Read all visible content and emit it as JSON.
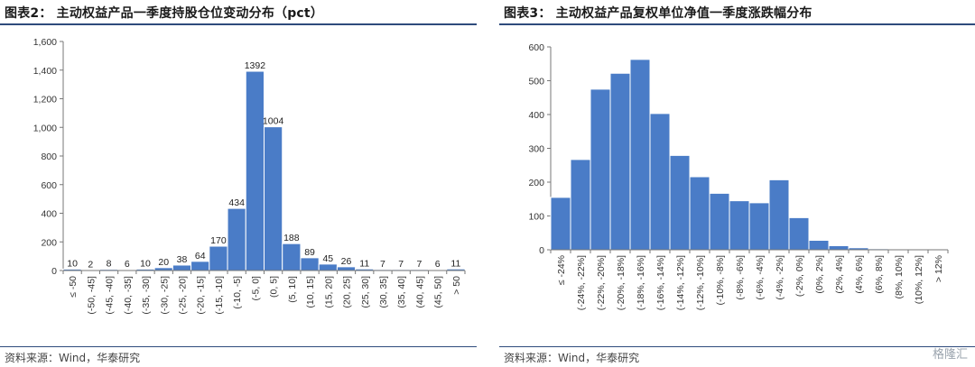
{
  "left": {
    "title": "图表2：  主动权益产品一季度持股仓位变动分布（pct）",
    "source": "资料来源：Wind，华泰研究",
    "chart_data": {
      "type": "bar",
      "title": "主动权益产品一季度持股仓位变动分布（pct）",
      "categories": [
        "≤ -50",
        "(-50, -45]",
        "(-45, -40]",
        "(-40, -35]",
        "(-35, -30]",
        "(-30, -25]",
        "(-25, -20]",
        "(-20, -15]",
        "(-15, -10]",
        "(-10, -5]",
        "(-5, 0]",
        "(0, 5]",
        "(5, 10]",
        "(10, 15]",
        "(15, 20]",
        "(20, 25]",
        "(25, 30]",
        "(30, 35]",
        "(35, 40]",
        "(40, 45]",
        "(45, 50]",
        "> 50"
      ],
      "values": [
        10,
        2,
        8,
        6,
        10,
        20,
        38,
        64,
        170,
        434,
        1392,
        1004,
        188,
        89,
        45,
        26,
        11,
        7,
        7,
        7,
        6,
        11
      ],
      "yticks": [
        "0",
        "200",
        "400",
        "600",
        "800",
        "1,000",
        "1,200",
        "1,400",
        "1,600"
      ],
      "ylim": [
        0,
        1600
      ],
      "data_labels": true,
      "color": "#4a7cc7"
    }
  },
  "right": {
    "title": "图表3：  主动权益产品复权单位净值一季度涨跌幅分布",
    "source": "资料来源：Wind，华泰研究",
    "chart_data": {
      "type": "bar",
      "title": "主动权益产品复权单位净值一季度涨跌幅分布",
      "categories": [
        "≤ -24%",
        "(-24%, -22%]",
        "(-22%, -20%]",
        "(-20%, -18%]",
        "(-18%, -16%]",
        "(-16%, -14%]",
        "(-14%, -12%]",
        "(-12%, -10%]",
        "(-10%, -8%]",
        "(-8%, -6%]",
        "(-6%, -4%]",
        "(-4%, -2%]",
        "(-2%, 0%]",
        "(0%, 2%]",
        "(2%, 4%]",
        "(4%, 6%]",
        "(6%, 8%]",
        "(8%, 10%]",
        "(10%, 12%]",
        "> 12%"
      ],
      "values": [
        155,
        267,
        475,
        522,
        563,
        403,
        279,
        216,
        167,
        145,
        139,
        207,
        95,
        28,
        12,
        6,
        3,
        2,
        2,
        2
      ],
      "yticks": [
        "0",
        "100",
        "200",
        "300",
        "400",
        "500",
        "600"
      ],
      "ylim": [
        0,
        600
      ],
      "data_labels": false,
      "color": "#4a7cc7"
    }
  },
  "watermark": "格隆汇"
}
